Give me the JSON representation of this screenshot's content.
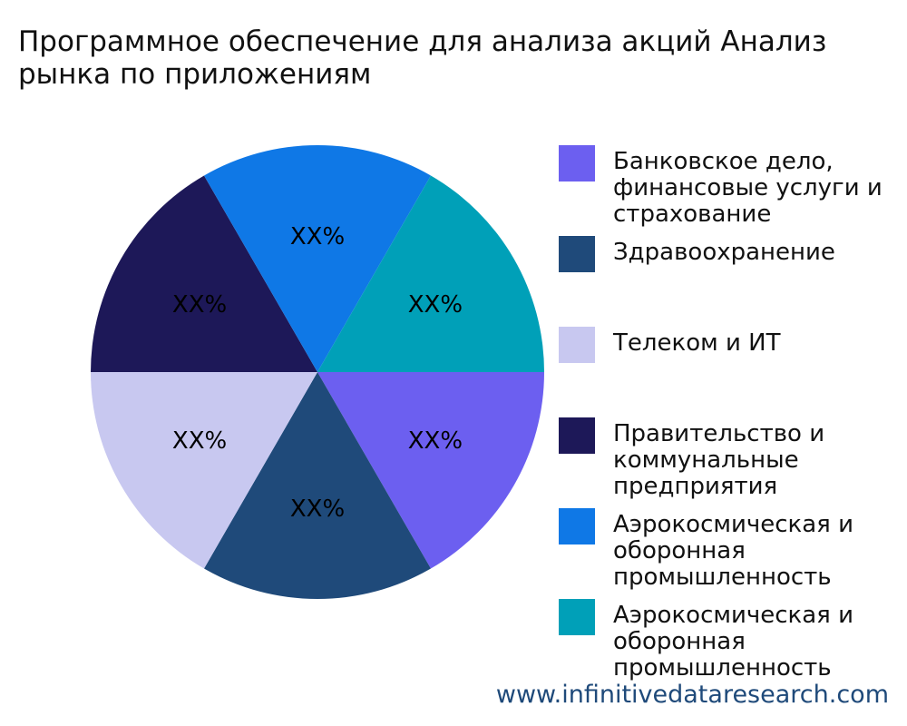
{
  "chart_data": {
    "type": "pie",
    "title_lines": [
      "Программное обеспечение для анализа акций Анализ",
      "рынка по приложениям"
    ],
    "slices": [
      {
        "name": "Банковское дело,\nфинансовые услуги и\nстрахование",
        "value": 1,
        "label": "XX%",
        "color": "#6c5ff0"
      },
      {
        "name": "Здравоохранение",
        "value": 1,
        "label": "XX%",
        "color": "#1f4a7a"
      },
      {
        "name": "Телеком и ИТ",
        "value": 1,
        "label": "XX%",
        "color": "#c8c8f0"
      },
      {
        "name": "Правительство и\nкоммунальные\nпредприятия",
        "value": 1,
        "label": "XX%",
        "color": "#1d1858"
      },
      {
        "name": "Аэрокосмическая и\nоборонная\nпромышленность",
        "value": 1,
        "label": "XX%",
        "color": "#0f78e6"
      },
      {
        "name": "Аэрокосмическая и\nоборонная\nпромышленность",
        "value": 1,
        "label": "XX%",
        "color": "#00a0b8"
      }
    ],
    "legend_position": "right"
  },
  "watermark": "www.infinitivedataresearch.com"
}
